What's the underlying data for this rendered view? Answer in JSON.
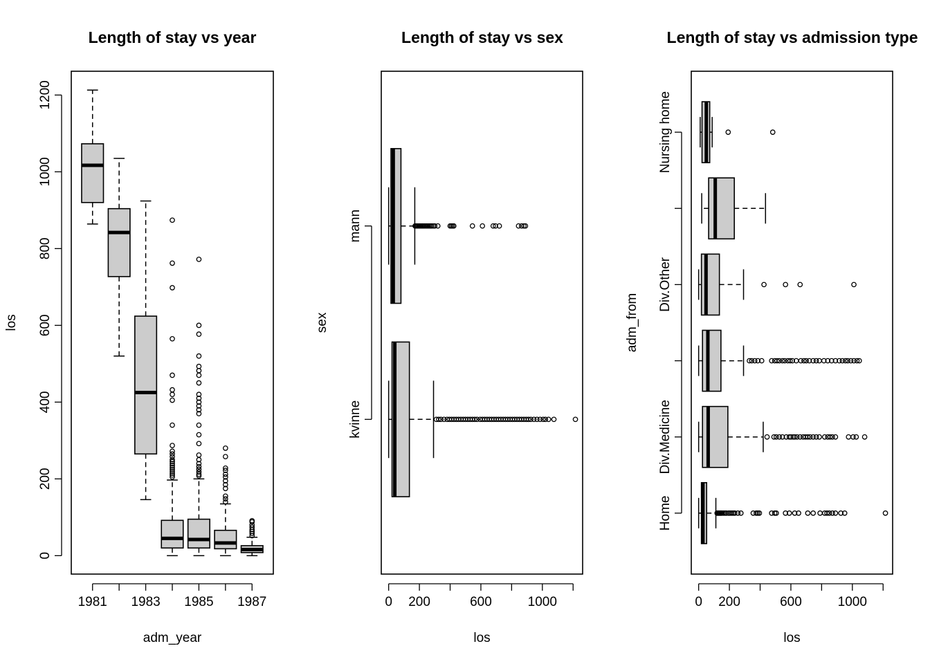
{
  "chart_data": [
    {
      "type": "boxplot",
      "orientation": "vertical",
      "title": "Length of stay vs year",
      "xlabel": "adm_year",
      "ylabel": "los",
      "ylim": [
        -48,
        1262
      ],
      "yticks": [
        0,
        200,
        400,
        600,
        800,
        1000,
        1200
      ],
      "categories": [
        "1981",
        "1982",
        "1983",
        "1984",
        "1985",
        "1986",
        "1987"
      ],
      "tick_labels": [
        "1981",
        "",
        "1983",
        "",
        "1985",
        "",
        "1987"
      ],
      "boxes": [
        {
          "category": "1981",
          "min": 864,
          "q1": 920,
          "median": 1017,
          "q3": 1073,
          "max": 1213,
          "outliers": []
        },
        {
          "category": "1982",
          "min": 520,
          "q1": 727,
          "median": 842,
          "q3": 904,
          "max": 1035,
          "outliers": []
        },
        {
          "category": "1983",
          "min": 146,
          "q1": 265,
          "median": 425,
          "q3": 624,
          "max": 924,
          "outliers": []
        },
        {
          "category": "1984",
          "min": 0,
          "q1": 20,
          "median": 45,
          "q3": 92,
          "max": 197,
          "outliers": [
            205,
            210,
            215,
            220,
            225,
            230,
            235,
            240,
            245,
            250,
            258,
            265,
            272,
            287,
            340,
            405,
            420,
            432,
            470,
            565,
            698,
            762,
            874
          ]
        },
        {
          "category": "1985",
          "min": 0,
          "q1": 20,
          "median": 42,
          "q3": 95,
          "max": 200,
          "outliers": [
            208,
            212,
            218,
            225,
            232,
            240,
            250,
            262,
            292,
            315,
            340,
            370,
            380,
            390,
            400,
            410,
            420,
            450,
            470,
            482,
            493,
            520,
            577,
            600,
            772
          ]
        },
        {
          "category": "1986",
          "min": 0,
          "q1": 18,
          "median": 33,
          "q3": 66,
          "max": 135,
          "outliers": [
            140,
            148,
            155,
            175,
            185,
            195,
            205,
            212,
            222,
            228,
            258,
            280
          ]
        },
        {
          "category": "1987",
          "min": 0,
          "q1": 8,
          "median": 16,
          "q3": 26,
          "max": 48,
          "outliers": [
            52,
            58,
            63,
            68,
            74,
            80,
            88,
            91
          ]
        }
      ]
    },
    {
      "type": "boxplot",
      "orientation": "horizontal",
      "title": "Length of stay vs sex",
      "xlabel": "los",
      "ylabel": "sex",
      "xlim": [
        -48,
        1262
      ],
      "xticks": [
        0,
        200,
        600,
        1000
      ],
      "categories": [
        "kvinne",
        "mann"
      ],
      "boxes": [
        {
          "category": "kvinne",
          "min": 0,
          "q1": 22,
          "median": 40,
          "q3": 135,
          "max": 292,
          "outliers": [
            310,
            325,
            340,
            360,
            380,
            395,
            410,
            425,
            440,
            455,
            470,
            485,
            500,
            515,
            530,
            545,
            560,
            575,
            595,
            610,
            625,
            640,
            655,
            670,
            685,
            700,
            715,
            730,
            745,
            760,
            775,
            790,
            805,
            820,
            835,
            850,
            865,
            880,
            895,
            910,
            925,
            945,
            965,
            985,
            1005,
            1020,
            1040,
            1075,
            1215
          ]
        },
        {
          "category": "mann",
          "min": 0,
          "q1": 15,
          "median": 30,
          "q3": 80,
          "max": 170,
          "outliers": [
            172,
            178,
            184,
            190,
            196,
            202,
            208,
            214,
            220,
            226,
            232,
            240,
            248,
            256,
            264,
            272,
            280,
            290,
            300,
            320,
            400,
            408,
            416,
            424,
            545,
            610,
            680,
            695,
            720,
            845,
            865,
            880,
            890
          ]
        }
      ]
    },
    {
      "type": "boxplot",
      "orientation": "horizontal",
      "title": "Length of stay vs admission type",
      "xlabel": "los",
      "ylabel": "adm_from",
      "xlim": [
        -48,
        1262
      ],
      "xticks": [
        0,
        200,
        600,
        1000
      ],
      "categories": [
        "Home",
        "Div.Medicine",
        "",
        "Div.Other",
        "",
        "Nursing home"
      ],
      "boxes": [
        {
          "category": "Home",
          "min": 0,
          "q1": 18,
          "median": 28,
          "q3": 52,
          "max": 112,
          "outliers": [
            120,
            125,
            130,
            135,
            140,
            145,
            150,
            160,
            170,
            180,
            195,
            205,
            215,
            225,
            235,
            255,
            275,
            355,
            375,
            385,
            395,
            475,
            495,
            505,
            565,
            590,
            625,
            650,
            710,
            745,
            790,
            820,
            835,
            850,
            870,
            890,
            925,
            950,
            1215
          ]
        },
        {
          "category": "Div.Medicine",
          "min": 0,
          "q1": 25,
          "median": 62,
          "q3": 190,
          "max": 420,
          "outliers": [
            445,
            490,
            505,
            525,
            545,
            570,
            590,
            600,
            615,
            625,
            640,
            660,
            680,
            695,
            710,
            725,
            745,
            765,
            785,
            820,
            840,
            855,
            870,
            890,
            975,
            1005,
            1025,
            1080
          ]
        },
        {
          "category": "",
          "min": 0,
          "q1": 25,
          "median": 60,
          "q3": 145,
          "max": 292,
          "outliers": [
            330,
            345,
            365,
            385,
            410,
            475,
            495,
            510,
            525,
            545,
            560,
            580,
            595,
            610,
            635,
            665,
            685,
            700,
            720,
            745,
            765,
            785,
            815,
            840,
            865,
            890,
            915,
            935,
            955,
            970,
            990,
            1010,
            1030,
            1045
          ]
        },
        {
          "category": "Div.Other",
          "min": 0,
          "q1": 18,
          "median": 48,
          "q3": 135,
          "max": 292,
          "outliers": [
            425,
            565,
            660,
            1010
          ]
        },
        {
          "category": "",
          "min": 20,
          "q1": 65,
          "median": 108,
          "q3": 232,
          "max": 435,
          "outliers": []
        },
        {
          "category": "Nursing home",
          "min": 10,
          "q1": 22,
          "median": 50,
          "q3": 72,
          "max": 88,
          "outliers": [
            192,
            482
          ]
        }
      ]
    }
  ]
}
